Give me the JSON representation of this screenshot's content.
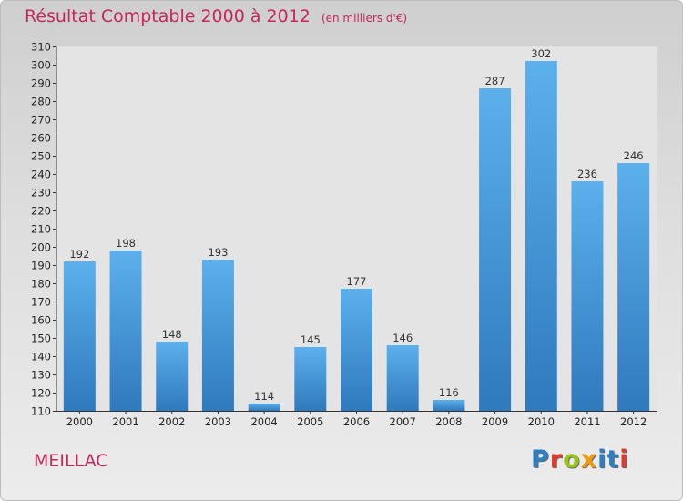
{
  "header": {
    "title": "Résultat Comptable 2000 à 2012",
    "subtitle": "(en milliers d'€)"
  },
  "footer": {
    "commune": "MEILLAC",
    "logo_text": "Proxiti",
    "logo_letters": [
      "P",
      "r",
      "o",
      "x",
      "i",
      "t",
      "i"
    ],
    "logo_colors": [
      "#2b7fc3",
      "#e03a2f",
      "#9ac31c",
      "#f39a14",
      "#2b7fc3",
      "#2b7fc3",
      "#e03a2f"
    ]
  },
  "chart_data": {
    "type": "bar",
    "categories": [
      "2000",
      "2001",
      "2002",
      "2003",
      "2004",
      "2005",
      "2006",
      "2007",
      "2008",
      "2009",
      "2010",
      "2011",
      "2012"
    ],
    "values": [
      192,
      198,
      148,
      193,
      114,
      145,
      177,
      146,
      116,
      287,
      302,
      236,
      246
    ],
    "ylim": [
      110,
      310
    ],
    "ytick_step": 10,
    "bar_color": "#4f9ee0",
    "grid": false
  }
}
